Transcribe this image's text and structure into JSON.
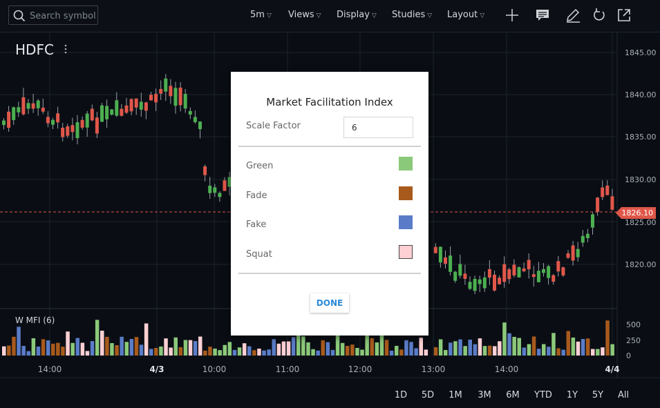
{
  "toolbar": {
    "search_placeholder": "Search symbol",
    "interval": "5m",
    "views": "Views",
    "display": "Display",
    "studies": "Studies",
    "layout": "Layout",
    "icons": [
      "plus-icon",
      "comment-icon",
      "pencil-icon",
      "undo-icon",
      "popout-icon"
    ]
  },
  "chart": {
    "symbol": "HDFC",
    "last_price": "1826.10",
    "price_axis": [
      "1845.00",
      "1840.00",
      "1835.00",
      "1830.00",
      "1825.00",
      "1820.00"
    ],
    "indicator_label": "W MFI (6)",
    "volume_axis": [
      "500",
      "250",
      "0"
    ],
    "time_axis": [
      {
        "label": "14:00",
        "bold": false
      },
      {
        "label": "4/3",
        "bold": true
      },
      {
        "label": "10:00",
        "bold": false
      },
      {
        "label": "11:00",
        "bold": false
      },
      {
        "label": "12:00",
        "bold": false
      },
      {
        "label": "13:00",
        "bold": false
      },
      {
        "label": "14:00",
        "bold": false
      },
      {
        "label": "4/4",
        "bold": true
      }
    ],
    "colors": {
      "up": "#4caf50",
      "down": "#e0574a",
      "green": "#8bc97a",
      "fade": "#a85a1c",
      "fake": "#5a7cc8",
      "squat": "#ffd0d4"
    }
  },
  "ranges": [
    "1D",
    "5D",
    "1M",
    "3M",
    "6M",
    "YTD",
    "1Y",
    "5Y",
    "All"
  ],
  "dialog": {
    "title": "Market Facilitation Index",
    "scale_factor_label": "Scale Factor",
    "scale_factor_value": "6",
    "colors": [
      {
        "label": "Green",
        "color": "#8bc97a"
      },
      {
        "label": "Fade",
        "color": "#a85a1c"
      },
      {
        "label": "Fake",
        "color": "#5a7cc8"
      },
      {
        "label": "Squat",
        "color": "#ffd0d4"
      }
    ],
    "done_label": "DONE"
  }
}
